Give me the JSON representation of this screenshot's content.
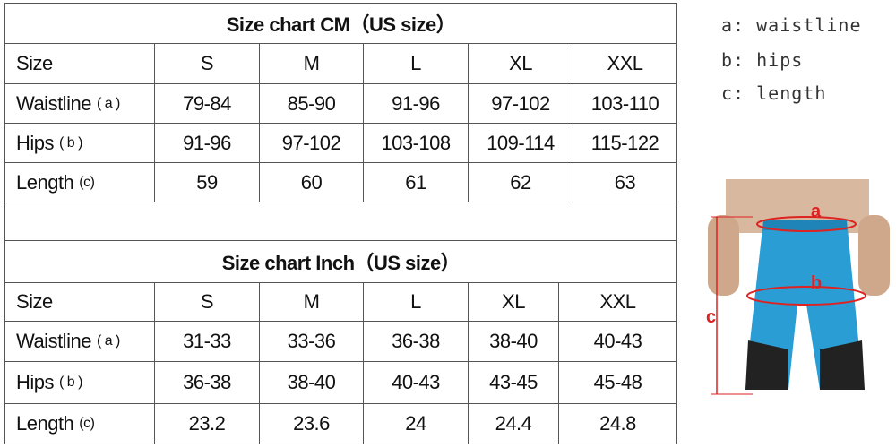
{
  "cm_table": {
    "title": "Size chart CM（US size）",
    "header": {
      "label": "Size",
      "values": [
        "S",
        "M",
        "L",
        "XL",
        "XXL"
      ]
    },
    "rows": [
      {
        "label": "Waistline",
        "note": "( a )",
        "values": [
          "79-84",
          "85-90",
          "91-96",
          "97-102",
          "103-110"
        ]
      },
      {
        "label": "Hips",
        "note": "( b )",
        "values": [
          "91-96",
          "97-102",
          "103-108",
          "109-114",
          "115-122"
        ]
      },
      {
        "label": "Length",
        "note": "(c)",
        "values": [
          "59",
          "60",
          "61",
          "62",
          "63"
        ]
      }
    ]
  },
  "inch_table": {
    "title": "Size chart Inch（US size）",
    "header": {
      "label": "Size",
      "values": [
        "S",
        "M",
        "L",
        "XL",
        "XXL"
      ]
    },
    "rows": [
      {
        "label": "Waistline",
        "note": "( a )",
        "values": [
          "31-33",
          "33-36",
          "36-38",
          "38-40",
          "40-43"
        ]
      },
      {
        "label": "Hips",
        "note": "( b )",
        "values": [
          "36-38",
          "38-40",
          "40-43",
          "43-45",
          "45-48"
        ]
      },
      {
        "label": "Length",
        "note": "(c)",
        "values": [
          "23.2",
          "23.6",
          "24",
          "24.4",
          "24.8"
        ]
      }
    ]
  },
  "legend": [
    "a: waistline",
    "b: hips",
    "c: length"
  ],
  "figure_labels": [
    "a",
    "b",
    "c"
  ]
}
